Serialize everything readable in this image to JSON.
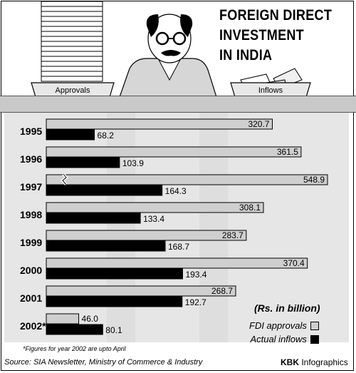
{
  "title_lines": [
    "FOREIGN DIRECT",
    "INVESTMENT",
    "IN INDIA"
  ],
  "illustration": {
    "approvals_tray_label": "Approvals",
    "inflows_tray_label": "Inflows"
  },
  "unit_note": "(Rs. in billion)",
  "legend": {
    "approvals": "FDI approvals",
    "inflows": "Actual inflows"
  },
  "footnote": "*Figures for year 2002 are upto April",
  "source": "Source: SIA Newsletter, Ministry of Commerce & Industry",
  "credit_bold": "KBK",
  "credit_rest": " Infographics",
  "colors": {
    "approvals_bar": "#cfcfcf",
    "inflows_bar": "#000000",
    "panel_bg": "#e6e6e6",
    "counter": "#c9c9c9"
  },
  "chart_data": {
    "type": "bar",
    "orientation": "horizontal",
    "categories": [
      "1995",
      "1996",
      "1997",
      "1998",
      "1999",
      "2000",
      "2001",
      "2002*"
    ],
    "series": [
      {
        "name": "FDI approvals",
        "values": [
          320.7,
          361.5,
          548.9,
          308.1,
          283.7,
          370.4,
          268.7,
          46.0
        ],
        "labels": [
          "320.7",
          "361.5",
          "548.9",
          "308.1",
          "283.7",
          "370.4",
          "268.7",
          "46.0"
        ]
      },
      {
        "name": "Actual inflows",
        "values": [
          68.2,
          103.9,
          164.3,
          133.4,
          168.7,
          193.4,
          192.7,
          80.1
        ],
        "labels": [
          "68.2",
          "103.9",
          "164.3",
          "133.4",
          "168.7",
          "193.4",
          "192.7",
          "80.1"
        ]
      }
    ],
    "axis_break": {
      "category": "1997",
      "series": "FDI approvals"
    },
    "unit": "Rs. in billion",
    "grid": false,
    "legend_position": "bottom-right"
  }
}
